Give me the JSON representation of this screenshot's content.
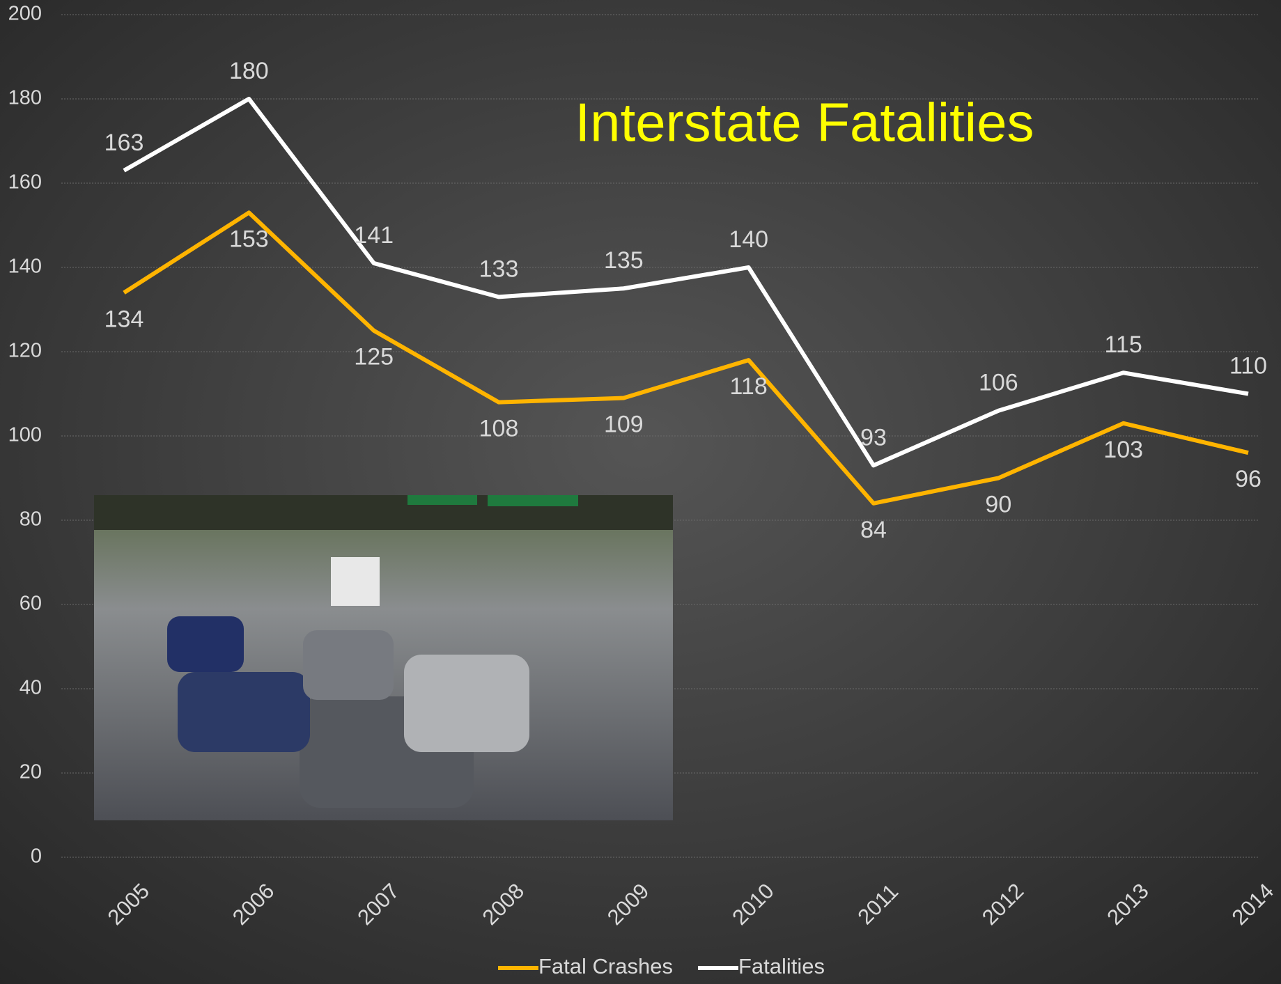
{
  "chart_data": {
    "type": "line",
    "title": "Interstate Fatalities",
    "categories": [
      "2005",
      "2006",
      "2007",
      "2008",
      "2009",
      "2010",
      "2011",
      "2012",
      "2013",
      "2014"
    ],
    "series": [
      {
        "name": "Fatal Crashes",
        "color": "#ffb400",
        "values": [
          134,
          153,
          125,
          108,
          109,
          118,
          84,
          90,
          103,
          96
        ]
      },
      {
        "name": "Fatalities",
        "color": "#ffffff",
        "values": [
          163,
          180,
          141,
          133,
          135,
          140,
          93,
          106,
          115,
          110
        ]
      }
    ],
    "ylim": [
      0,
      200
    ],
    "yticks": [
      0,
      20,
      40,
      60,
      80,
      100,
      120,
      140,
      160,
      180,
      200
    ],
    "grid": true,
    "legend": "bottom"
  }
}
